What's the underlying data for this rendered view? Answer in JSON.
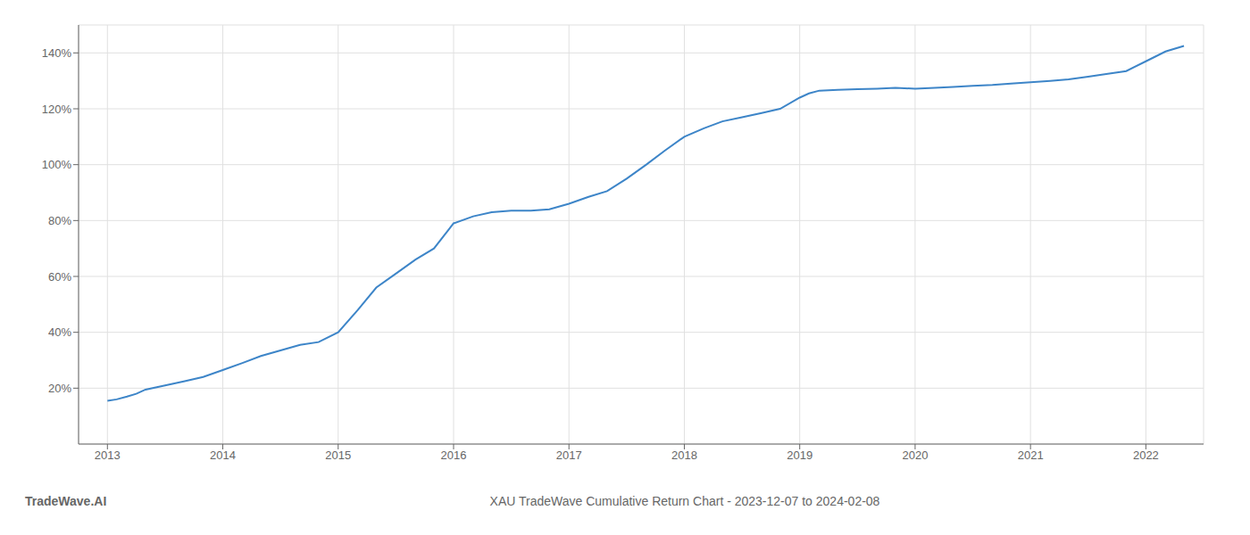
{
  "chart_data": {
    "type": "line",
    "title": "XAU TradeWave Cumulative Return Chart - 2023-12-07 to 2024-02-08",
    "annotations": [
      "TradeWave.AI"
    ],
    "color": "#3d85c8",
    "grid": true,
    "x": [
      2013.0,
      2013.08,
      2013.17,
      2013.25,
      2013.33,
      2013.5,
      2013.67,
      2013.83,
      2014.0,
      2014.17,
      2014.33,
      2014.5,
      2014.67,
      2014.83,
      2015.0,
      2015.17,
      2015.33,
      2015.5,
      2015.67,
      2015.83,
      2016.0,
      2016.17,
      2016.33,
      2016.5,
      2016.67,
      2016.83,
      2017.0,
      2017.17,
      2017.33,
      2017.5,
      2017.67,
      2017.83,
      2018.0,
      2018.17,
      2018.33,
      2018.5,
      2018.67,
      2018.83,
      2019.0,
      2019.08,
      2019.17,
      2019.33,
      2019.5,
      2019.67,
      2019.83,
      2020.0,
      2020.17,
      2020.33,
      2020.5,
      2020.67,
      2020.83,
      2021.0,
      2021.17,
      2021.33,
      2021.5,
      2021.67,
      2021.83,
      2022.0,
      2022.17,
      2022.33
    ],
    "values": [
      15.5,
      16.0,
      17.0,
      18.0,
      19.5,
      21.0,
      22.5,
      24.0,
      26.5,
      29.0,
      31.5,
      33.5,
      35.5,
      36.5,
      40.0,
      48.0,
      56.0,
      61.0,
      66.0,
      70.0,
      79.0,
      81.5,
      83.0,
      83.5,
      83.5,
      84.0,
      86.0,
      88.5,
      90.5,
      95.0,
      100.0,
      105.0,
      110.0,
      113.0,
      115.5,
      117.0,
      118.5,
      120.0,
      124.0,
      125.5,
      126.5,
      126.8,
      127.0,
      127.2,
      127.5,
      127.2,
      127.5,
      127.8,
      128.2,
      128.5,
      129.0,
      129.5,
      130.0,
      130.5,
      131.5,
      132.5,
      133.5,
      137.0,
      140.5,
      142.5
    ],
    "xlim": [
      2012.75,
      2022.5
    ],
    "xticks": [
      2013,
      2014,
      2015,
      2016,
      2017,
      2018,
      2019,
      2020,
      2021,
      2022
    ],
    "ylim": [
      0,
      150
    ],
    "yticks": [
      {
        "value": 20,
        "label": "20%"
      },
      {
        "value": 40,
        "label": "40%"
      },
      {
        "value": 60,
        "label": "60%"
      },
      {
        "value": 80,
        "label": "80%"
      },
      {
        "value": 100,
        "label": "100%"
      },
      {
        "value": 120,
        "label": "120%"
      },
      {
        "value": 140,
        "label": "140%"
      }
    ]
  }
}
